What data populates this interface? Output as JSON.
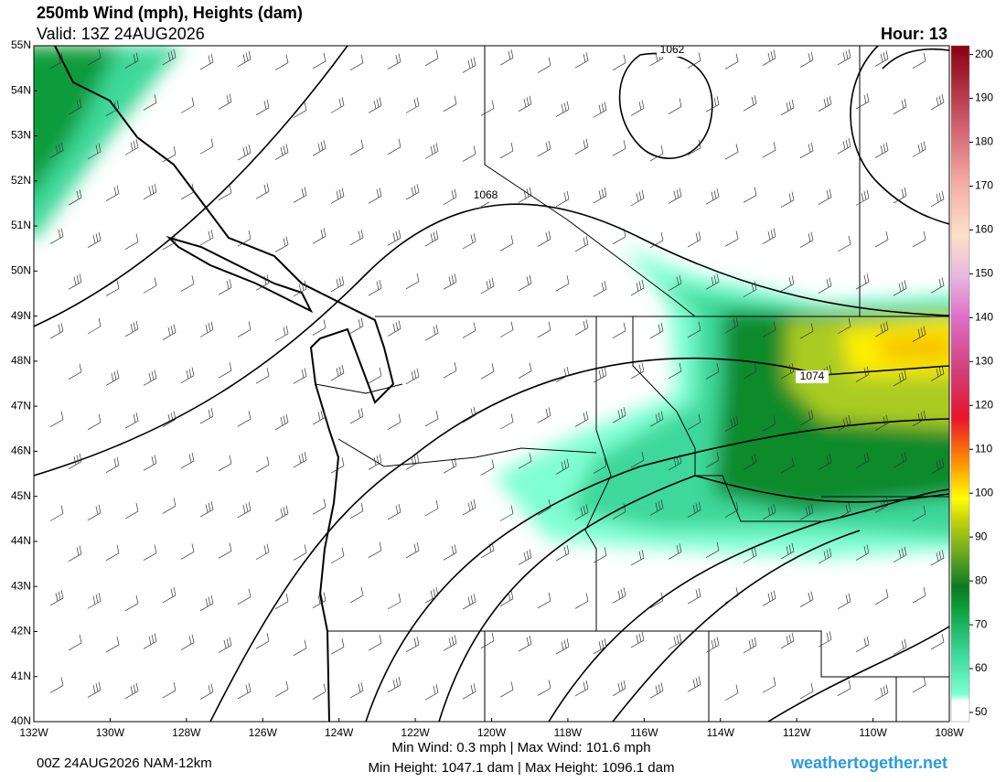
{
  "header": {
    "title": "250mb Wind (mph), Heights (dam)",
    "valid": "Valid: 13Z 24AUG2026",
    "hour": "Hour: 13"
  },
  "map": {
    "lat_labels": [
      "55N",
      "54N",
      "53N",
      "52N",
      "51N",
      "50N",
      "49N",
      "48N",
      "47N",
      "46N",
      "45N",
      "44N",
      "43N",
      "42N",
      "41N",
      "40N"
    ],
    "lon_labels": [
      "132W",
      "130W",
      "128W",
      "126W",
      "124W",
      "122W",
      "120W",
      "118W",
      "116W",
      "114W",
      "112W",
      "110W",
      "108W"
    ],
    "contour_labels": [
      "1062",
      "1068",
      "1074"
    ]
  },
  "colorbar": {
    "lim": [
      50,
      202
    ],
    "ticks": [
      50,
      60,
      70,
      80,
      90,
      100,
      110,
      120,
      130,
      140,
      150,
      160,
      170,
      180,
      190,
      200
    ]
  },
  "footer": {
    "run": "00Z 24AUG2026 NAM-12km",
    "wind": "Min Wind:   0.3 mph | Max Wind: 101.6 mph",
    "height": "Min Height: 1047.1 dam | Max Height: 1096.1 dam",
    "site": "weathertogether.net"
  }
}
